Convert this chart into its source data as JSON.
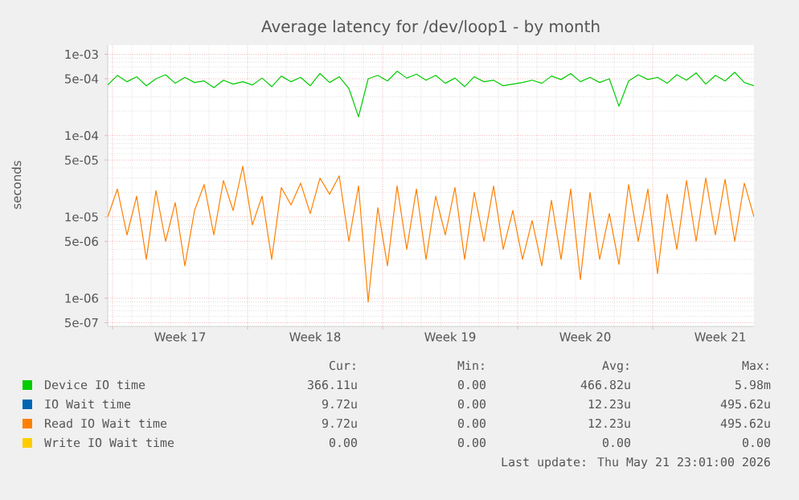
{
  "chart_data": {
    "type": "line",
    "title": "Average latency for /dev/loop1 - by month",
    "ylabel": "seconds",
    "x": [
      "2026-04-18T18:00",
      "2026-04-19T06:00",
      "2026-04-19T18:00",
      "2026-04-20T06:00",
      "2026-04-20T18:00",
      "2026-04-21T06:00",
      "2026-04-21T18:00",
      "2026-04-22T06:00",
      "2026-04-22T18:00",
      "2026-04-23T06:00",
      "2026-04-23T18:00",
      "2026-04-24T06:00",
      "2026-04-24T18:00",
      "2026-04-25T06:00",
      "2026-04-25T18:00",
      "2026-04-26T06:00",
      "2026-04-26T18:00",
      "2026-04-27T06:00",
      "2026-04-27T18:00",
      "2026-04-28T06:00",
      "2026-04-28T18:00",
      "2026-04-29T06:00",
      "2026-04-29T18:00",
      "2026-04-30T06:00",
      "2026-04-30T18:00",
      "2026-05-01T06:00",
      "2026-05-01T18:00",
      "2026-05-02T06:00",
      "2026-05-02T18:00",
      "2026-05-03T06:00",
      "2026-05-03T18:00",
      "2026-05-04T06:00",
      "2026-05-04T18:00",
      "2026-05-05T06:00",
      "2026-05-05T18:00",
      "2026-05-06T06:00",
      "2026-05-06T18:00",
      "2026-05-07T06:00",
      "2026-05-07T18:00",
      "2026-05-08T06:00",
      "2026-05-08T18:00",
      "2026-05-09T06:00",
      "2026-05-09T18:00",
      "2026-05-10T06:00",
      "2026-05-10T18:00",
      "2026-05-11T06:00",
      "2026-05-11T18:00",
      "2026-05-12T06:00",
      "2026-05-12T18:00",
      "2026-05-13T06:00",
      "2026-05-13T18:00",
      "2026-05-14T06:00",
      "2026-05-14T18:00",
      "2026-05-15T06:00",
      "2026-05-15T18:00",
      "2026-05-16T06:00",
      "2026-05-16T18:00",
      "2026-05-17T06:00",
      "2026-05-17T18:00",
      "2026-05-18T06:00",
      "2026-05-18T18:00",
      "2026-05-19T06:00",
      "2026-05-19T18:00",
      "2026-05-20T06:00",
      "2026-05-20T18:00",
      "2026-05-21T06:00",
      "2026-05-21T18:00",
      "2026-05-22T06:00"
    ],
    "series": [
      {
        "name": "Device IO time",
        "color": "#00cc00",
        "values": [
          0.00042,
          0.00055,
          0.00046,
          0.00053,
          0.00041,
          0.0005,
          0.00056,
          0.00044,
          0.00052,
          0.00045,
          0.00047,
          0.00039,
          0.00048,
          0.00043,
          0.00046,
          0.00042,
          0.00051,
          0.0004,
          0.00054,
          0.00046,
          0.00052,
          0.00041,
          0.00058,
          0.00045,
          0.00053,
          0.00038,
          0.00017,
          0.0005,
          0.00055,
          0.00047,
          0.00062,
          0.00051,
          0.00057,
          0.00048,
          0.00055,
          0.00044,
          0.00051,
          0.0004,
          0.00053,
          0.00046,
          0.00048,
          0.00041,
          0.00043,
          0.00045,
          0.00048,
          0.00044,
          0.00054,
          0.00049,
          0.00058,
          0.00046,
          0.00052,
          0.00045,
          0.0005,
          0.00023,
          0.00047,
          0.00056,
          0.00049,
          0.00052,
          0.00044,
          0.00056,
          0.00048,
          0.00059,
          0.00043,
          0.00055,
          0.00047,
          0.0006,
          0.00045,
          0.00041
        ]
      },
      {
        "name": "IO Wait time",
        "color": "#0066b3",
        "values": [
          null,
          null,
          null,
          null,
          null,
          null,
          null,
          null,
          null,
          null,
          null,
          null,
          null,
          null,
          null,
          null,
          null,
          null,
          null,
          null,
          null,
          null,
          null,
          null,
          null,
          null,
          null,
          null,
          null,
          null,
          null,
          null,
          null,
          null,
          null,
          null,
          null,
          null,
          null,
          null,
          null,
          null,
          null,
          null,
          null,
          null,
          null,
          null,
          null,
          null,
          null,
          null,
          null,
          null,
          null,
          null,
          null,
          null,
          null,
          null,
          null,
          null,
          null,
          null,
          null,
          null,
          null,
          null
        ]
      },
      {
        "name": "Read IO Wait time",
        "color": "#ff8000",
        "values": [
          1e-05,
          2.2e-05,
          6e-06,
          1.8e-05,
          3e-06,
          2.1e-05,
          5e-06,
          1.5e-05,
          2.5e-06,
          1.2e-05,
          2.5e-05,
          6e-06,
          2.8e-05,
          1.2e-05,
          4.2e-05,
          8e-06,
          1.8e-05,
          3e-06,
          2.3e-05,
          1.4e-05,
          2.6e-05,
          1.1e-05,
          3e-05,
          1.9e-05,
          3.2e-05,
          5e-06,
          2.4e-05,
          9e-07,
          1.3e-05,
          2.5e-06,
          2.4e-05,
          4e-06,
          2.2e-05,
          3e-06,
          1.8e-05,
          6e-06,
          2.3e-05,
          3e-06,
          2e-05,
          5e-06,
          2.4e-05,
          4e-06,
          1.2e-05,
          3e-06,
          9e-06,
          2.5e-06,
          1.6e-05,
          3e-06,
          2.2e-05,
          1.7e-06,
          2e-05,
          3e-06,
          1.1e-05,
          2.6e-06,
          2.5e-05,
          5e-06,
          2.2e-05,
          2e-06,
          1.9e-05,
          4e-06,
          2.8e-05,
          5e-06,
          3e-05,
          6e-06,
          2.9e-05,
          5e-06,
          2.6e-05,
          1e-05
        ]
      },
      {
        "name": "Write IO Wait time",
        "color": "#ffcc00",
        "values": [
          null,
          null,
          null,
          null,
          null,
          null,
          null,
          null,
          null,
          null,
          null,
          null,
          null,
          null,
          null,
          null,
          null,
          null,
          null,
          null,
          null,
          null,
          null,
          null,
          null,
          null,
          null,
          null,
          null,
          null,
          null,
          null,
          null,
          null,
          null,
          null,
          null,
          null,
          null,
          null,
          null,
          null,
          null,
          null,
          null,
          null,
          null,
          null,
          null,
          null,
          null,
          null,
          null,
          null,
          null,
          null,
          null,
          null,
          null,
          null,
          null,
          null,
          null,
          null,
          null,
          null,
          null,
          null
        ]
      }
    ],
    "xlim": [
      "2026-04-18T18:00",
      "2026-05-22T06:00"
    ],
    "xticks": [
      {
        "value": "2026-04-19",
        "label": null
      },
      {
        "value": "2026-04-22T12:00",
        "label": "Week 17"
      },
      {
        "value": "2026-04-26",
        "label": null
      },
      {
        "value": "2026-04-29T12:00",
        "label": "Week 18"
      },
      {
        "value": "2026-05-03",
        "label": null
      },
      {
        "value": "2026-05-06T12:00",
        "label": "Week 19"
      },
      {
        "value": "2026-05-10",
        "label": null
      },
      {
        "value": "2026-05-13T12:00",
        "label": "Week 20"
      },
      {
        "value": "2026-05-17",
        "label": null
      },
      {
        "value": "2026-05-20T12:00",
        "label": "Week 21"
      }
    ],
    "ylim": [
      4.5e-07,
      0.0013
    ],
    "yticks": [
      {
        "value": 0.001,
        "label": "1e-03"
      },
      {
        "value": 0.0005,
        "label": "5e-04"
      },
      {
        "value": 0.0001,
        "label": "1e-04"
      },
      {
        "value": 5e-05,
        "label": "5e-05"
      },
      {
        "value": 1e-05,
        "label": "1e-05"
      },
      {
        "value": 5e-06,
        "label": "5e-06"
      },
      {
        "value": 1e-06,
        "label": "1e-06"
      },
      {
        "value": 5e-07,
        "label": "5e-07"
      }
    ],
    "log": "y",
    "grid": true,
    "legend": "bottom",
    "marker": "none",
    "line_style": "solid",
    "annotations": [
      "Cur:",
      "Min:",
      "Avg:",
      "Max:",
      "366.11u",
      "0.00",
      "466.82u",
      "5.98m",
      "9.72u",
      "0.00",
      "12.23u",
      "495.62u",
      "9.72u",
      "0.00",
      "12.23u",
      "495.62u",
      "0.00",
      "0.00",
      "0.00",
      "0.00",
      "Last update: Thu May 21 23:01:00 2026"
    ]
  }
}
